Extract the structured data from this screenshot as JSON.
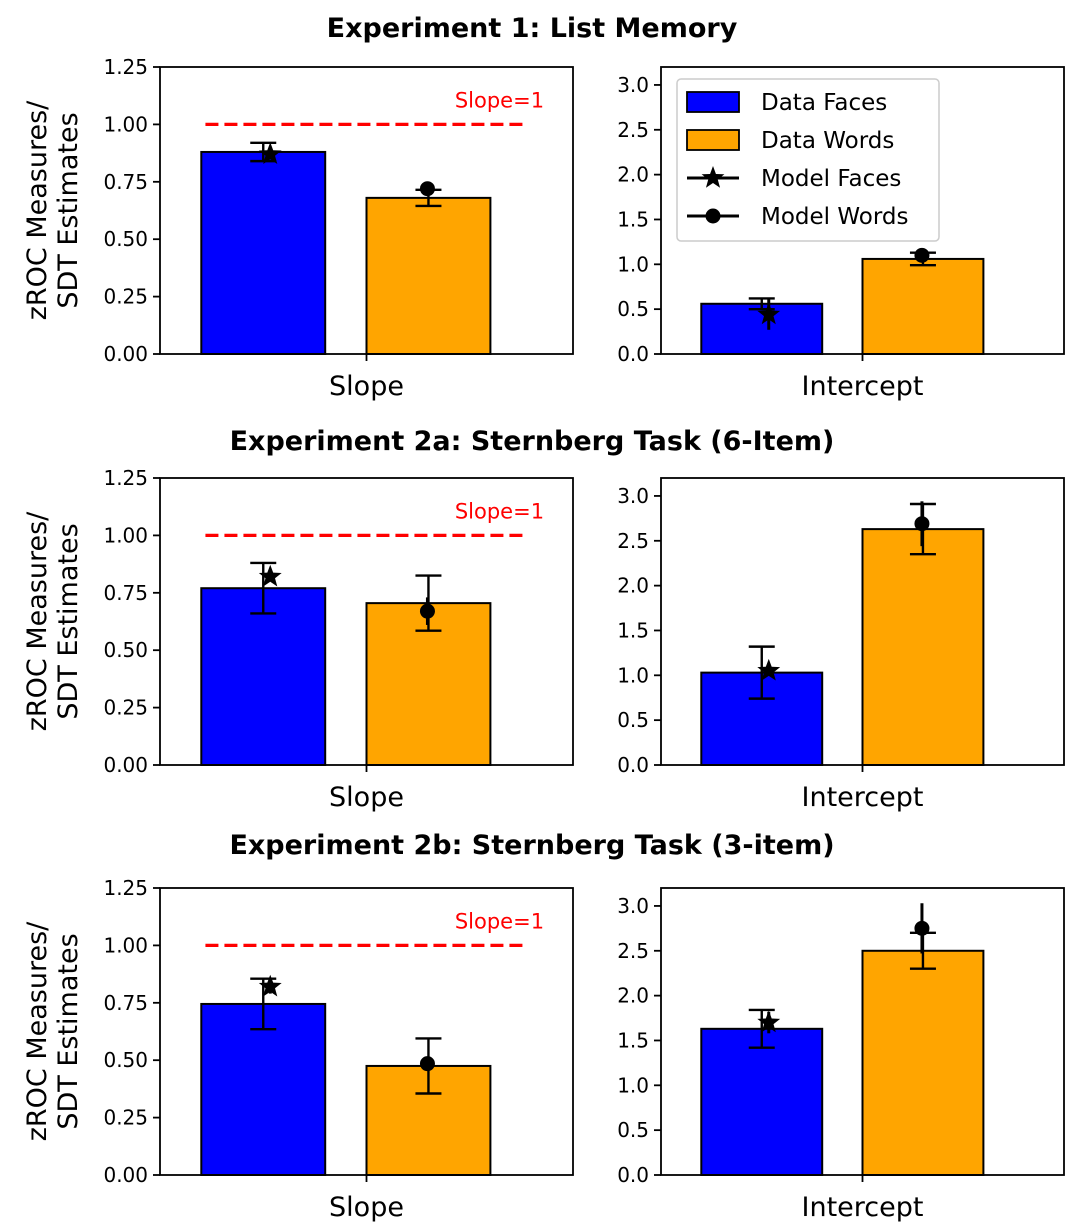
{
  "legend": {
    "items": [
      {
        "label": "Data Faces",
        "kind": "bar",
        "color": "#0000ff"
      },
      {
        "label": "Data Words",
        "kind": "bar",
        "color": "#ffa500"
      },
      {
        "label": "Model Faces",
        "kind": "star",
        "color": "#000000"
      },
      {
        "label": "Model Words",
        "kind": "circle",
        "color": "#000000"
      }
    ]
  },
  "colors": {
    "faces": "#0000ff",
    "words": "#ffa500",
    "reference": "#ff0000"
  },
  "chart_data": [
    {
      "type": "bar",
      "panel_title": "Experiment 1: List Memory",
      "ylabel": "zROC Measures/\nSDT Estimates",
      "xlabel": "Slope",
      "ylim": [
        0,
        1.25
      ],
      "yticks": [
        "0.00",
        "0.25",
        "0.50",
        "0.75",
        "1.00",
        "1.25"
      ],
      "reference_line": {
        "y": 1.0,
        "label": "Slope=1"
      },
      "series": [
        {
          "name": "Data Faces",
          "values": [
            0.88
          ],
          "error": [
            0.04
          ]
        },
        {
          "name": "Data Words",
          "values": [
            0.68
          ],
          "error": [
            0.035
          ]
        },
        {
          "name": "Model Faces",
          "marker": "star",
          "values": [
            0.87
          ],
          "error": [
            0.02
          ]
        },
        {
          "name": "Model Words",
          "marker": "circle",
          "values": [
            0.72
          ],
          "error": [
            0.02
          ]
        }
      ]
    },
    {
      "type": "bar",
      "panel_title": "Experiment 1: List Memory",
      "xlabel": "Intercept",
      "ylim": [
        0,
        3.2
      ],
      "yticks": [
        "0.0",
        "0.5",
        "1.0",
        "1.5",
        "2.0",
        "2.5",
        "3.0"
      ],
      "series": [
        {
          "name": "Data Faces",
          "values": [
            0.56
          ],
          "error": [
            0.06
          ]
        },
        {
          "name": "Data Words",
          "values": [
            1.06
          ],
          "error": [
            0.07
          ]
        },
        {
          "name": "Model Faces",
          "marker": "star",
          "values": [
            0.44
          ],
          "error": [
            0.17
          ]
        },
        {
          "name": "Model Words",
          "marker": "circle",
          "values": [
            1.1
          ],
          "error": [
            0.05
          ]
        }
      ]
    },
    {
      "type": "bar",
      "panel_title": "Experiment 2a: Sternberg Task (6-Item)",
      "ylabel": "zROC Measures/\nSDT Estimates",
      "xlabel": "Slope",
      "ylim": [
        0,
        1.25
      ],
      "yticks": [
        "0.00",
        "0.25",
        "0.50",
        "0.75",
        "1.00",
        "1.25"
      ],
      "reference_line": {
        "y": 1.0,
        "label": "Slope=1"
      },
      "series": [
        {
          "name": "Data Faces",
          "values": [
            0.77
          ],
          "error": [
            0.11
          ]
        },
        {
          "name": "Data Words",
          "values": [
            0.705
          ],
          "error": [
            0.12
          ]
        },
        {
          "name": "Model Faces",
          "marker": "star",
          "values": [
            0.82
          ],
          "error": [
            0.02
          ]
        },
        {
          "name": "Model Words",
          "marker": "circle",
          "values": [
            0.67
          ],
          "error": [
            0.06
          ]
        }
      ]
    },
    {
      "type": "bar",
      "panel_title": "Experiment 2a: Sternberg Task (6-Item)",
      "xlabel": "Intercept",
      "ylim": [
        0,
        3.2
      ],
      "yticks": [
        "0.0",
        "0.5",
        "1.0",
        "1.5",
        "2.0",
        "2.5",
        "3.0"
      ],
      "series": [
        {
          "name": "Data Faces",
          "values": [
            1.03
          ],
          "error": [
            0.29
          ]
        },
        {
          "name": "Data Words",
          "values": [
            2.63
          ],
          "error": [
            0.28
          ]
        },
        {
          "name": "Model Faces",
          "marker": "star",
          "values": [
            1.05
          ],
          "error": [
            0.03
          ]
        },
        {
          "name": "Model Words",
          "marker": "circle",
          "values": [
            2.69
          ],
          "error": [
            0.25
          ]
        }
      ]
    },
    {
      "type": "bar",
      "panel_title": "Experiment 2b: Sternberg Task (3-item)",
      "ylabel": "zROC Measures/\nSDT Estimates",
      "xlabel": "Slope",
      "ylim": [
        0,
        1.25
      ],
      "yticks": [
        "0.00",
        "0.25",
        "0.50",
        "0.75",
        "1.00",
        "1.25"
      ],
      "reference_line": {
        "y": 1.0,
        "label": "Slope=1"
      },
      "series": [
        {
          "name": "Data Faces",
          "values": [
            0.745
          ],
          "error": [
            0.11
          ]
        },
        {
          "name": "Data Words",
          "values": [
            0.475
          ],
          "error": [
            0.12
          ]
        },
        {
          "name": "Model Faces",
          "marker": "star",
          "values": [
            0.82
          ],
          "error": [
            0.03
          ]
        },
        {
          "name": "Model Words",
          "marker": "circle",
          "values": [
            0.485
          ],
          "error": [
            0.02
          ]
        }
      ]
    },
    {
      "type": "bar",
      "panel_title": "Experiment 2b: Sternberg Task (3-item)",
      "xlabel": "Intercept",
      "ylim": [
        0,
        3.2
      ],
      "yticks": [
        "0.0",
        "0.5",
        "1.0",
        "1.5",
        "2.0",
        "2.5",
        "3.0"
      ],
      "series": [
        {
          "name": "Data Faces",
          "values": [
            1.63
          ],
          "error": [
            0.21
          ]
        },
        {
          "name": "Data Words",
          "values": [
            2.5
          ],
          "error": [
            0.2
          ]
        },
        {
          "name": "Model Faces",
          "marker": "star",
          "values": [
            1.7
          ],
          "error": [
            0.12
          ]
        },
        {
          "name": "Model Words",
          "marker": "circle",
          "values": [
            2.75
          ],
          "error": [
            0.28
          ]
        }
      ]
    }
  ]
}
